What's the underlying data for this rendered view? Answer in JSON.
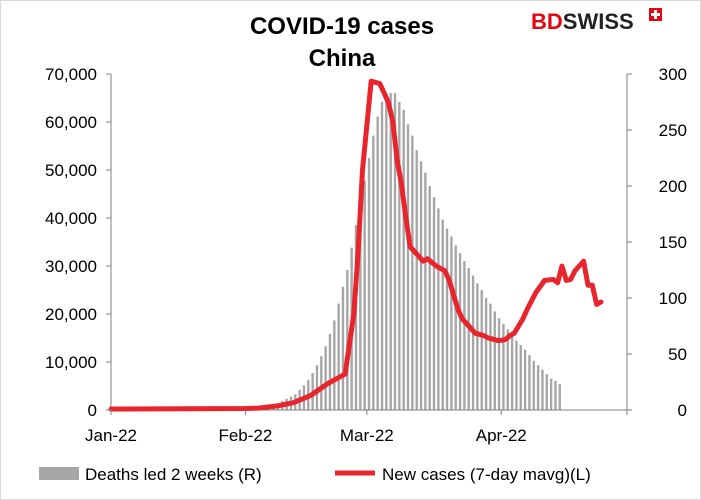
{
  "brand": {
    "bd": "BD",
    "swiss": "SWISS",
    "bd_color": "#e30613",
    "swiss_color": "#222222"
  },
  "chart_data": {
    "type": "bar+line",
    "title_lines": [
      "COVID-19 cases",
      "China"
    ],
    "x_tick_labels": [
      "Jan-22",
      "Feb-22",
      "Mar-22",
      "Apr-22"
    ],
    "x_tick_dates": [
      "2022-01-01",
      "2022-02-01",
      "2022-03-01",
      "2022-04-01"
    ],
    "x_range": [
      "2022-01-01",
      "2022-04-30"
    ],
    "y_left": {
      "min": 0,
      "max": 70000,
      "ticks": [
        "0",
        "10,000",
        "20,000",
        "30,000",
        "40,000",
        "50,000",
        "60,000",
        "70,000"
      ]
    },
    "y_right": {
      "min": 0,
      "max": 300,
      "ticks": [
        "0",
        "50",
        "100",
        "150",
        "200",
        "250",
        "300"
      ]
    },
    "grid": false,
    "legend_position": "bottom",
    "bar_color": "#a6a6a6",
    "line_color": "#e8252d",
    "series": [
      {
        "name": "Deaths led 2 weeks (R)",
        "type": "bar",
        "axis": "right",
        "x": [
          "2022-02-07",
          "2022-02-08",
          "2022-02-09",
          "2022-02-10",
          "2022-02-11",
          "2022-02-12",
          "2022-02-13",
          "2022-02-14",
          "2022-02-15",
          "2022-02-16",
          "2022-02-17",
          "2022-02-18",
          "2022-02-19",
          "2022-02-20",
          "2022-02-21",
          "2022-02-22",
          "2022-02-23",
          "2022-02-24",
          "2022-02-25",
          "2022-02-26",
          "2022-02-27",
          "2022-02-28",
          "2022-03-01",
          "2022-03-02",
          "2022-03-03",
          "2022-03-04",
          "2022-03-05",
          "2022-03-06",
          "2022-03-07",
          "2022-03-08",
          "2022-03-09",
          "2022-03-10",
          "2022-03-11",
          "2022-03-12",
          "2022-03-13",
          "2022-03-14",
          "2022-03-15",
          "2022-03-16",
          "2022-03-17",
          "2022-03-18",
          "2022-03-19",
          "2022-03-20",
          "2022-03-21",
          "2022-03-22",
          "2022-03-23",
          "2022-03-24",
          "2022-03-25",
          "2022-03-26",
          "2022-03-27",
          "2022-03-28",
          "2022-03-29",
          "2022-03-30",
          "2022-03-31",
          "2022-04-01",
          "2022-04-02",
          "2022-04-03",
          "2022-04-04",
          "2022-04-05",
          "2022-04-06",
          "2022-04-07",
          "2022-04-08",
          "2022-04-09",
          "2022-04-10",
          "2022-04-11",
          "2022-04-12",
          "2022-04-13",
          "2022-04-14"
        ],
        "values": [
          4,
          5,
          8,
          10,
          12,
          14,
          18,
          22,
          27,
          33,
          40,
          48,
          57,
          68,
          80,
          95,
          110,
          125,
          145,
          165,
          185,
          205,
          225,
          245,
          262,
          275,
          283,
          283,
          283,
          275,
          268,
          255,
          245,
          232,
          222,
          212,
          200,
          190,
          180,
          170,
          162,
          155,
          147,
          140,
          133,
          127,
          120,
          113,
          107,
          100,
          95,
          88,
          82,
          77,
          72,
          68,
          62,
          58,
          54,
          49,
          44,
          40,
          36,
          32,
          28,
          26,
          23
        ]
      },
      {
        "name": "New cases (7-day mavg)(L)",
        "type": "line",
        "axis": "left",
        "x": [
          "2022-01-01",
          "2022-02-01",
          "2022-02-04",
          "2022-02-08",
          "2022-02-12",
          "2022-02-16",
          "2022-02-20",
          "2022-02-24",
          "2022-02-26",
          "2022-02-27",
          "2022-02-28",
          "2022-03-02",
          "2022-03-04",
          "2022-03-05",
          "2022-03-06",
          "2022-03-07",
          "2022-03-08",
          "2022-03-09",
          "2022-03-10",
          "2022-03-11",
          "2022-03-12",
          "2022-03-13",
          "2022-03-14",
          "2022-03-15",
          "2022-03-17",
          "2022-03-19",
          "2022-03-20",
          "2022-03-21",
          "2022-03-22",
          "2022-03-23",
          "2022-03-24",
          "2022-03-26",
          "2022-03-28",
          "2022-03-29",
          "2022-03-30",
          "2022-03-31",
          "2022-04-01",
          "2022-04-02",
          "2022-04-03",
          "2022-04-04",
          "2022-04-05",
          "2022-04-06",
          "2022-04-07",
          "2022-04-09",
          "2022-04-11",
          "2022-04-13",
          "2022-04-14",
          "2022-04-15",
          "2022-04-16",
          "2022-04-17",
          "2022-04-18",
          "2022-04-19",
          "2022-04-20",
          "2022-04-21",
          "2022-04-22",
          "2022-04-23",
          "2022-04-24"
        ],
        "values": [
          200,
          300,
          400,
          800,
          1500,
          3000,
          5500,
          7500,
          20000,
          33000,
          50000,
          68500,
          68000,
          66000,
          64000,
          60000,
          52000,
          47000,
          40000,
          34000,
          33000,
          32000,
          31000,
          31500,
          30000,
          29000,
          27000,
          24000,
          21000,
          19000,
          18000,
          16000,
          15500,
          15000,
          14800,
          14500,
          14500,
          14700,
          15500,
          16000,
          17500,
          19000,
          21000,
          24500,
          27000,
          27200,
          26500,
          30000,
          27000,
          27200,
          29000,
          30000,
          31000,
          26000,
          26000,
          22000,
          22500
        ]
      }
    ]
  }
}
